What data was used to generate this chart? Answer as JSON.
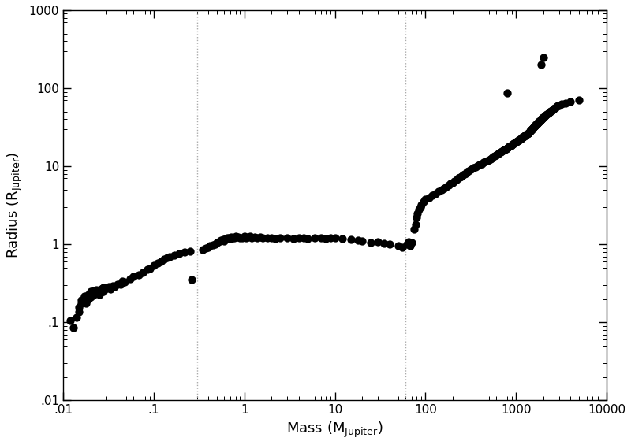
{
  "title": "",
  "xlabel": "Mass (M_{Jupiter})",
  "ylabel": "Radius (R_{Jupiter})",
  "xlim": [
    0.01,
    10000
  ],
  "ylim": [
    0.01,
    1000
  ],
  "vlines": [
    0.3,
    60
  ],
  "background_color": "#ffffff",
  "dot_color": "#000000",
  "dot_size": 55,
  "points": [
    [
      0.012,
      0.105
    ],
    [
      0.013,
      0.085
    ],
    [
      0.014,
      0.115
    ],
    [
      0.015,
      0.135
    ],
    [
      0.015,
      0.155
    ],
    [
      0.016,
      0.175
    ],
    [
      0.016,
      0.195
    ],
    [
      0.017,
      0.195
    ],
    [
      0.017,
      0.215
    ],
    [
      0.018,
      0.175
    ],
    [
      0.018,
      0.205
    ],
    [
      0.019,
      0.2
    ],
    [
      0.019,
      0.225
    ],
    [
      0.02,
      0.21
    ],
    [
      0.02,
      0.235
    ],
    [
      0.02,
      0.25
    ],
    [
      0.021,
      0.22
    ],
    [
      0.021,
      0.245
    ],
    [
      0.022,
      0.225
    ],
    [
      0.022,
      0.255
    ],
    [
      0.023,
      0.24
    ],
    [
      0.023,
      0.26
    ],
    [
      0.024,
      0.245
    ],
    [
      0.025,
      0.225
    ],
    [
      0.025,
      0.26
    ],
    [
      0.026,
      0.265
    ],
    [
      0.027,
      0.25
    ],
    [
      0.027,
      0.275
    ],
    [
      0.028,
      0.25
    ],
    [
      0.028,
      0.28
    ],
    [
      0.029,
      0.265
    ],
    [
      0.03,
      0.28
    ],
    [
      0.032,
      0.285
    ],
    [
      0.033,
      0.27
    ],
    [
      0.035,
      0.295
    ],
    [
      0.037,
      0.285
    ],
    [
      0.04,
      0.31
    ],
    [
      0.043,
      0.31
    ],
    [
      0.045,
      0.335
    ],
    [
      0.048,
      0.33
    ],
    [
      0.055,
      0.365
    ],
    [
      0.06,
      0.39
    ],
    [
      0.068,
      0.41
    ],
    [
      0.075,
      0.44
    ],
    [
      0.085,
      0.48
    ],
    [
      0.09,
      0.49
    ],
    [
      0.1,
      0.54
    ],
    [
      0.11,
      0.57
    ],
    [
      0.12,
      0.61
    ],
    [
      0.13,
      0.64
    ],
    [
      0.14,
      0.67
    ],
    [
      0.15,
      0.7
    ],
    [
      0.17,
      0.73
    ],
    [
      0.19,
      0.76
    ],
    [
      0.22,
      0.8
    ],
    [
      0.25,
      0.82
    ],
    [
      0.26,
      0.35
    ],
    [
      0.35,
      0.86
    ],
    [
      0.38,
      0.89
    ],
    [
      0.4,
      0.92
    ],
    [
      0.42,
      0.96
    ],
    [
      0.45,
      0.99
    ],
    [
      0.48,
      1.0
    ],
    [
      0.5,
      1.05
    ],
    [
      0.52,
      1.08
    ],
    [
      0.55,
      1.12
    ],
    [
      0.58,
      1.15
    ],
    [
      0.6,
      1.1
    ],
    [
      0.62,
      1.18
    ],
    [
      0.65,
      1.22
    ],
    [
      0.68,
      1.2
    ],
    [
      0.7,
      1.18
    ],
    [
      0.72,
      1.25
    ],
    [
      0.75,
      1.2
    ],
    [
      0.78,
      1.22
    ],
    [
      0.8,
      1.28
    ],
    [
      0.85,
      1.25
    ],
    [
      0.9,
      1.22
    ],
    [
      0.95,
      1.2
    ],
    [
      1.0,
      1.28
    ],
    [
      1.05,
      1.2
    ],
    [
      1.1,
      1.25
    ],
    [
      1.15,
      1.28
    ],
    [
      1.2,
      1.22
    ],
    [
      1.3,
      1.25
    ],
    [
      1.4,
      1.2
    ],
    [
      1.5,
      1.25
    ],
    [
      1.6,
      1.22
    ],
    [
      1.8,
      1.2
    ],
    [
      2.0,
      1.22
    ],
    [
      2.2,
      1.18
    ],
    [
      2.5,
      1.22
    ],
    [
      3.0,
      1.2
    ],
    [
      3.5,
      1.18
    ],
    [
      4.0,
      1.22
    ],
    [
      4.5,
      1.2
    ],
    [
      5.0,
      1.18
    ],
    [
      6.0,
      1.22
    ],
    [
      7.0,
      1.2
    ],
    [
      8.0,
      1.18
    ],
    [
      9.0,
      1.22
    ],
    [
      10.0,
      1.2
    ],
    [
      12.0,
      1.18
    ],
    [
      15.0,
      1.15
    ],
    [
      18.0,
      1.12
    ],
    [
      20.0,
      1.1
    ],
    [
      25.0,
      1.05
    ],
    [
      30.0,
      1.08
    ],
    [
      35.0,
      1.02
    ],
    [
      40.0,
      1.0
    ],
    [
      50.0,
      0.96
    ],
    [
      55.0,
      0.92
    ],
    [
      62.0,
      1.0
    ],
    [
      65.0,
      1.08
    ],
    [
      68.0,
      0.96
    ],
    [
      70.0,
      1.05
    ],
    [
      75.0,
      1.55
    ],
    [
      78.0,
      1.8
    ],
    [
      80.0,
      2.2
    ],
    [
      82.0,
      2.5
    ],
    [
      85.0,
      2.8
    ],
    [
      88.0,
      3.0
    ],
    [
      90.0,
      3.2
    ],
    [
      95.0,
      3.5
    ],
    [
      100.0,
      3.8
    ],
    [
      110.0,
      4.0
    ],
    [
      120.0,
      4.2
    ],
    [
      130.0,
      4.5
    ],
    [
      140.0,
      4.8
    ],
    [
      150.0,
      5.0
    ],
    [
      160.0,
      5.2
    ],
    [
      170.0,
      5.5
    ],
    [
      180.0,
      5.8
    ],
    [
      190.0,
      6.0
    ],
    [
      200.0,
      6.2
    ],
    [
      210.0,
      6.5
    ],
    [
      220.0,
      6.8
    ],
    [
      230.0,
      7.0
    ],
    [
      240.0,
      7.2
    ],
    [
      250.0,
      7.5
    ],
    [
      260.0,
      7.8
    ],
    [
      270.0,
      8.0
    ],
    [
      280.0,
      8.2
    ],
    [
      290.0,
      8.5
    ],
    [
      300.0,
      8.8
    ],
    [
      320.0,
      9.2
    ],
    [
      340.0,
      9.5
    ],
    [
      360.0,
      9.8
    ],
    [
      380.0,
      10.2
    ],
    [
      400.0,
      10.5
    ],
    [
      420.0,
      10.8
    ],
    [
      440.0,
      11.2
    ],
    [
      460.0,
      11.5
    ],
    [
      480.0,
      11.8
    ],
    [
      500.0,
      12.2
    ],
    [
      520.0,
      12.5
    ],
    [
      540.0,
      12.8
    ],
    [
      560.0,
      13.2
    ],
    [
      580.0,
      13.5
    ],
    [
      600.0,
      13.8
    ],
    [
      620.0,
      14.2
    ],
    [
      640.0,
      14.5
    ],
    [
      660.0,
      14.8
    ],
    [
      680.0,
      15.2
    ],
    [
      700.0,
      15.5
    ],
    [
      720.0,
      15.8
    ],
    [
      740.0,
      16.2
    ],
    [
      760.0,
      16.5
    ],
    [
      780.0,
      16.8
    ],
    [
      800.0,
      17.2
    ],
    [
      820.0,
      17.5
    ],
    [
      840.0,
      17.8
    ],
    [
      860.0,
      18.2
    ],
    [
      880.0,
      18.5
    ],
    [
      900.0,
      18.8
    ],
    [
      920.0,
      19.2
    ],
    [
      940.0,
      19.5
    ],
    [
      960.0,
      19.8
    ],
    [
      980.0,
      20.2
    ],
    [
      1000.0,
      20.5
    ],
    [
      1020.0,
      20.8
    ],
    [
      1040.0,
      21.2
    ],
    [
      1060.0,
      21.5
    ],
    [
      1080.0,
      21.8
    ],
    [
      1100.0,
      22.2
    ],
    [
      1120.0,
      22.5
    ],
    [
      1140.0,
      22.8
    ],
    [
      1160.0,
      23.2
    ],
    [
      1180.0,
      23.5
    ],
    [
      1200.0,
      23.8
    ],
    [
      1220.0,
      24.2
    ],
    [
      1240.0,
      24.5
    ],
    [
      1260.0,
      24.8
    ],
    [
      1280.0,
      25.2
    ],
    [
      1300.0,
      25.5
    ],
    [
      1320.0,
      25.8
    ],
    [
      1340.0,
      26.2
    ],
    [
      1360.0,
      26.5
    ],
    [
      1380.0,
      26.8
    ],
    [
      1400.0,
      27.5
    ],
    [
      1420.0,
      28.0
    ],
    [
      1440.0,
      28.5
    ],
    [
      1460.0,
      29.0
    ],
    [
      1480.0,
      29.5
    ],
    [
      1500.0,
      30.0
    ],
    [
      1520.0,
      30.5
    ],
    [
      1540.0,
      31.0
    ],
    [
      1560.0,
      31.5
    ],
    [
      1580.0,
      32.0
    ],
    [
      1600.0,
      32.5
    ],
    [
      1620.0,
      33.0
    ],
    [
      1640.0,
      33.5
    ],
    [
      1660.0,
      34.0
    ],
    [
      1680.0,
      34.5
    ],
    [
      1700.0,
      35.0
    ],
    [
      1720.0,
      35.5
    ],
    [
      1740.0,
      36.0
    ],
    [
      1760.0,
      36.5
    ],
    [
      1780.0,
      37.0
    ],
    [
      1800.0,
      37.5
    ],
    [
      1820.0,
      38.0
    ],
    [
      1840.0,
      38.5
    ],
    [
      1860.0,
      39.0
    ],
    [
      1880.0,
      39.5
    ],
    [
      1900.0,
      40.0
    ],
    [
      1920.0,
      40.5
    ],
    [
      1940.0,
      41.0
    ],
    [
      1960.0,
      41.5
    ],
    [
      1980.0,
      42.0
    ],
    [
      2000.0,
      42.5
    ],
    [
      2050.0,
      43.5
    ],
    [
      2100.0,
      44.5
    ],
    [
      2150.0,
      45.5
    ],
    [
      2200.0,
      46.5
    ],
    [
      2250.0,
      47.5
    ],
    [
      2300.0,
      48.5
    ],
    [
      2350.0,
      49.5
    ],
    [
      2400.0,
      50.5
    ],
    [
      2450.0,
      51.5
    ],
    [
      2500.0,
      52.5
    ],
    [
      2550.0,
      53.5
    ],
    [
      2600.0,
      54.5
    ],
    [
      2650.0,
      55.5
    ],
    [
      2700.0,
      56.5
    ],
    [
      2800.0,
      58.0
    ],
    [
      2900.0,
      59.5
    ],
    [
      3000.0,
      60.5
    ],
    [
      3200.0,
      62.5
    ],
    [
      3500.0,
      65.0
    ],
    [
      4000.0,
      68.0
    ],
    [
      5000.0,
      70.0
    ],
    [
      1900.0,
      200.0
    ],
    [
      2000.0,
      250.0
    ],
    [
      800.0,
      88.0
    ]
  ]
}
